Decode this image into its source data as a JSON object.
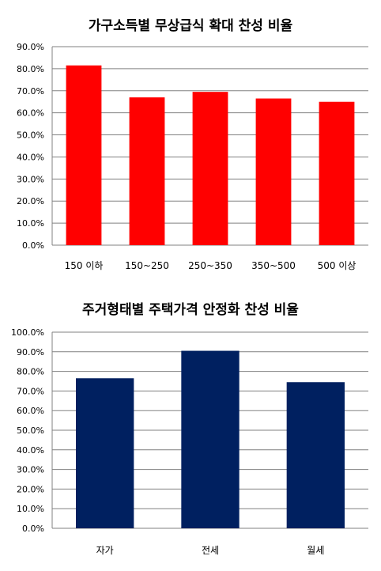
{
  "chart_data": [
    {
      "type": "bar",
      "title": "가구소득별 무상급식 확대 찬성 비율",
      "categories": [
        "150 이하",
        "150~250",
        "250~350",
        "350~500",
        "500 이상"
      ],
      "values": [
        81.5,
        67.0,
        69.5,
        66.5,
        65.0
      ],
      "ylim": [
        0,
        90
      ],
      "yticks": [
        0,
        10,
        20,
        30,
        40,
        50,
        60,
        70,
        80,
        90
      ],
      "tick_format": "percent_1dp",
      "color": "#ff0000",
      "grid": true,
      "xlabel": "",
      "ylabel": ""
    },
    {
      "type": "bar",
      "title": "주거형태별 주택가격 안정화 찬성 비율",
      "categories": [
        "자가",
        "전세",
        "월세"
      ],
      "values": [
        76.5,
        90.5,
        74.5
      ],
      "ylim": [
        0,
        100
      ],
      "yticks": [
        0,
        10,
        20,
        30,
        40,
        50,
        60,
        70,
        80,
        90,
        100
      ],
      "tick_format": "percent_1dp",
      "color": "#002060",
      "grid": true,
      "xlabel": "",
      "ylabel": ""
    }
  ]
}
